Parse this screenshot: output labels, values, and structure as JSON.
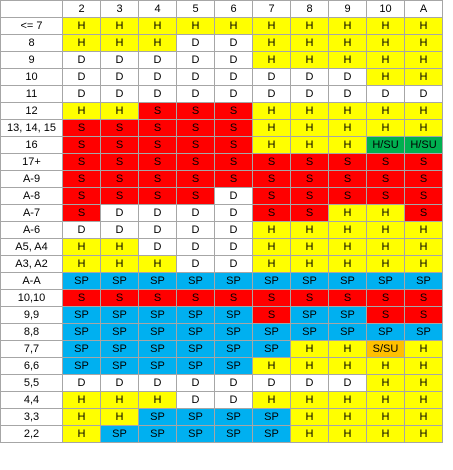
{
  "colors": {
    "H": "#ffff00",
    "D": "#ffffff",
    "S": "#ff0000",
    "SP": "#00b0f0",
    "H/SU": "#00b050",
    "S/SU": "#ffc000",
    "grid": "#a6a6a6"
  },
  "columns": [
    "2",
    "3",
    "4",
    "5",
    "6",
    "7",
    "8",
    "9",
    "10",
    "A"
  ],
  "rows": [
    {
      "hand": "<= 7",
      "actions": [
        "H",
        "H",
        "H",
        "H",
        "H",
        "H",
        "H",
        "H",
        "H",
        "H"
      ]
    },
    {
      "hand": "8",
      "actions": [
        "H",
        "H",
        "H",
        "D",
        "D",
        "H",
        "H",
        "H",
        "H",
        "H"
      ]
    },
    {
      "hand": "9",
      "actions": [
        "D",
        "D",
        "D",
        "D",
        "D",
        "H",
        "H",
        "H",
        "H",
        "H"
      ]
    },
    {
      "hand": "10",
      "actions": [
        "D",
        "D",
        "D",
        "D",
        "D",
        "D",
        "D",
        "D",
        "H",
        "H"
      ]
    },
    {
      "hand": "11",
      "actions": [
        "D",
        "D",
        "D",
        "D",
        "D",
        "D",
        "D",
        "D",
        "D",
        "D"
      ]
    },
    {
      "hand": "12",
      "actions": [
        "H",
        "H",
        "S",
        "S",
        "S",
        "H",
        "H",
        "H",
        "H",
        "H"
      ]
    },
    {
      "hand": "13, 14, 15",
      "actions": [
        "S",
        "S",
        "S",
        "S",
        "S",
        "H",
        "H",
        "H",
        "H",
        "H"
      ]
    },
    {
      "hand": "16",
      "actions": [
        "S",
        "S",
        "S",
        "S",
        "S",
        "H",
        "H",
        "H",
        "H/SU",
        "H/SU"
      ]
    },
    {
      "hand": "17+",
      "actions": [
        "S",
        "S",
        "S",
        "S",
        "S",
        "S",
        "S",
        "S",
        "S",
        "S"
      ]
    },
    {
      "hand": "A-9",
      "actions": [
        "S",
        "S",
        "S",
        "S",
        "S",
        "S",
        "S",
        "S",
        "S",
        "S"
      ]
    },
    {
      "hand": "A-8",
      "actions": [
        "S",
        "S",
        "S",
        "S",
        "D",
        "S",
        "S",
        "S",
        "S",
        "S"
      ]
    },
    {
      "hand": "A-7",
      "actions": [
        "S",
        "D",
        "D",
        "D",
        "D",
        "S",
        "S",
        "H",
        "H",
        "S"
      ]
    },
    {
      "hand": "A-6",
      "actions": [
        "D",
        "D",
        "D",
        "D",
        "D",
        "H",
        "H",
        "H",
        "H",
        "H"
      ]
    },
    {
      "hand": "A5, A4",
      "actions": [
        "H",
        "H",
        "D",
        "D",
        "D",
        "H",
        "H",
        "H",
        "H",
        "H"
      ]
    },
    {
      "hand": "A3, A2",
      "actions": [
        "H",
        "H",
        "H",
        "D",
        "D",
        "H",
        "H",
        "H",
        "H",
        "H"
      ]
    },
    {
      "hand": "A-A",
      "actions": [
        "SP",
        "SP",
        "SP",
        "SP",
        "SP",
        "SP",
        "SP",
        "SP",
        "SP",
        "SP"
      ]
    },
    {
      "hand": "10,10",
      "actions": [
        "S",
        "S",
        "S",
        "S",
        "S",
        "S",
        "S",
        "S",
        "S",
        "S"
      ]
    },
    {
      "hand": "9,9",
      "actions": [
        "SP",
        "SP",
        "SP",
        "SP",
        "SP",
        "S",
        "SP",
        "SP",
        "S",
        "S"
      ]
    },
    {
      "hand": "8,8",
      "actions": [
        "SP",
        "SP",
        "SP",
        "SP",
        "SP",
        "SP",
        "SP",
        "SP",
        "SP",
        "SP"
      ]
    },
    {
      "hand": "7,7",
      "actions": [
        "SP",
        "SP",
        "SP",
        "SP",
        "SP",
        "SP",
        "H",
        "H",
        "S/SU",
        "H"
      ]
    },
    {
      "hand": "6,6",
      "actions": [
        "SP",
        "SP",
        "SP",
        "SP",
        "SP",
        "H",
        "H",
        "H",
        "H",
        "H"
      ]
    },
    {
      "hand": "5,5",
      "actions": [
        "D",
        "D",
        "D",
        "D",
        "D",
        "D",
        "D",
        "D",
        "H",
        "H"
      ]
    },
    {
      "hand": "4,4",
      "actions": [
        "H",
        "H",
        "H",
        "D",
        "D",
        "H",
        "H",
        "H",
        "H",
        "H"
      ]
    },
    {
      "hand": "3,3",
      "actions": [
        "H",
        "H",
        "SP",
        "SP",
        "SP",
        "SP",
        "H",
        "H",
        "H",
        "H"
      ]
    },
    {
      "hand": "2,2",
      "actions": [
        "H",
        "SP",
        "SP",
        "SP",
        "SP",
        "SP",
        "H",
        "H",
        "H",
        "H"
      ]
    }
  ]
}
